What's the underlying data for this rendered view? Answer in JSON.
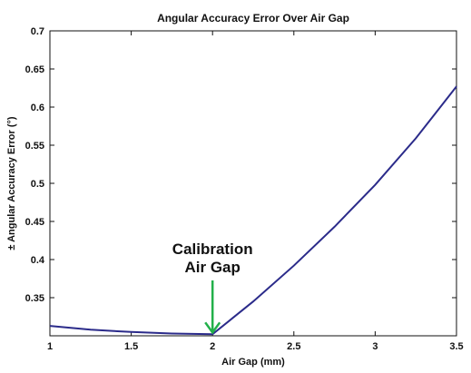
{
  "chart_data": {
    "type": "line",
    "title": "Angular Accuracy Error Over Air Gap",
    "xlabel": "Air Gap (mm)",
    "ylabel": "± Angular Accuracy Error (°)",
    "xlim": [
      1,
      3.5
    ],
    "ylim": [
      0.3,
      0.7
    ],
    "x_ticks": [
      1,
      1.5,
      2,
      2.5,
      3,
      3.5
    ],
    "x_tick_labels": [
      "1",
      "1.5",
      "2",
      "2.5",
      "3",
      "3.5"
    ],
    "y_ticks": [
      0.35,
      0.4,
      0.45,
      0.5,
      0.55,
      0.6,
      0.65,
      0.7
    ],
    "y_tick_labels": [
      "0.35",
      "0.4",
      "0.45",
      "0.5",
      "0.55",
      "0.6",
      "0.65",
      "0.7"
    ],
    "grid": false,
    "series": [
      {
        "color": "#2b2b8a",
        "x": [
          1.0,
          1.25,
          1.5,
          1.75,
          2.0,
          2.25,
          2.5,
          2.75,
          3.0,
          3.25,
          3.5
        ],
        "y": [
          0.313,
          0.308,
          0.305,
          0.303,
          0.302,
          0.345,
          0.392,
          0.443,
          0.498,
          0.559,
          0.627
        ]
      }
    ],
    "annotation": {
      "lines": [
        "Calibration",
        "Air Gap"
      ],
      "x": 2.0,
      "y": 0.302,
      "arrow_color": "#22b04a"
    }
  }
}
